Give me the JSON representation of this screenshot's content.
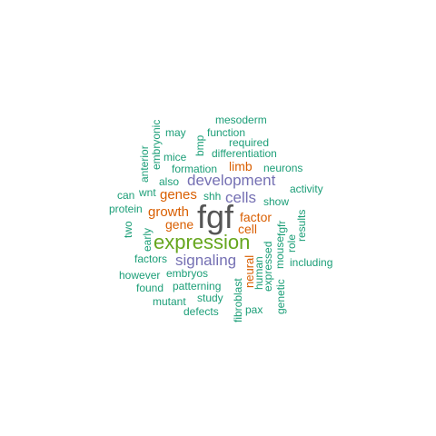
{
  "colors": {
    "dark": "#555555",
    "green": "#66a61e",
    "purple": "#7570b3",
    "orange": "#d95f02",
    "teal": "#1b9e77"
  },
  "words": {
    "fgf": "fgf",
    "expression": "expression",
    "development": "development",
    "signaling": "signaling",
    "cells": "cells",
    "genes": "genes",
    "growth": "growth",
    "gene": "gene",
    "factor": "factor",
    "cell": "cell",
    "limb": "limb",
    "neural": "neural",
    "mesoderm": "mesoderm",
    "may": "may",
    "function": "function",
    "required": "required",
    "mice": "mice",
    "differentiation": "differentiation",
    "formation": "formation",
    "neurons": "neurons",
    "also": "also",
    "activity": "activity",
    "can": "can",
    "wnt": "wnt",
    "shh": "shh",
    "show": "show",
    "protein": "protein",
    "factors": "factors",
    "including": "including",
    "however": "however",
    "embryos": "embryos",
    "found": "found",
    "patterning": "patterning",
    "mutant": "mutant",
    "study": "study",
    "defects": "defects",
    "pax": "pax",
    "embryonic": "embryonic",
    "anterior": "anterior",
    "bmp": "bmp",
    "two": "two",
    "early": "early",
    "fgfr": "fgfr",
    "results": "results",
    "role": "role",
    "mouse": "mouse",
    "expressed": "expressed",
    "human": "human",
    "fibroblast": "fibroblast",
    "genetic": "genetic"
  }
}
